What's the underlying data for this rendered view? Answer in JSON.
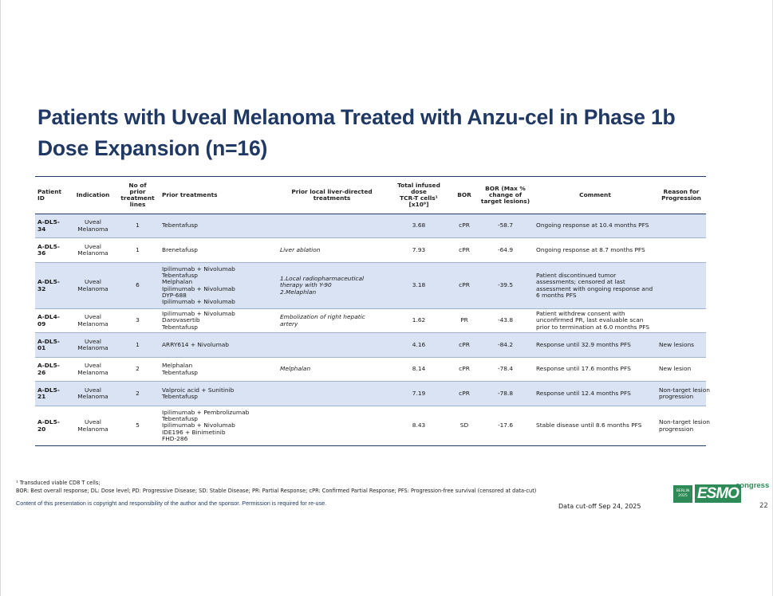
{
  "slide": {
    "title_lines": [
      "Patients with Uveal Melanoma Treated with Anzu-cel in Phase 1b",
      "Dose Expansion (n=16)"
    ],
    "page_number": "22",
    "data_cutoff": "Data cut-off Sep 24, 2025",
    "footnote_lines": [
      "¹ Transduced viable CD8 T cells;",
      "BOR: Best overall response; DL: Dose level; PD: Progressive Disease; SD: Stable Disease; PR: Partial Response; cPR: Confirmed Partial Response; PFS: Progression-free survival (censored at data-cut)"
    ],
    "copyright": "Content of this presentation is copyright and responsibility of the author and the sponsor. Permission is required for re-use.",
    "logo": {
      "city_lines": [
        "BERLIN",
        "2025"
      ],
      "word": "ESMO",
      "suffix": "congress",
      "color": "#2e8b57"
    }
  },
  "colors": {
    "title": "#1f3864",
    "row_shade": "#dae3f3",
    "rule": "#1f3864"
  },
  "table": {
    "headers": {
      "patient_id": [
        "Patient",
        "ID"
      ],
      "indication": [
        "Indication"
      ],
      "prior_lines": [
        "No of",
        "prior",
        "treatment",
        "lines"
      ],
      "prior_treatments": [
        "Prior treatments"
      ],
      "liver": [
        "Prior local liver-directed",
        "treatments"
      ],
      "dose": [
        "Total infused",
        "dose",
        "TCR-T cells¹",
        "[x10⁹]"
      ],
      "bor": [
        "BOR"
      ],
      "bor_pct": [
        "BOR (Max %",
        "change of",
        "target lesions)"
      ],
      "comment": [
        "Comment"
      ],
      "reason": [
        "Reason for",
        "Progression"
      ]
    },
    "rows": [
      {
        "shade": true,
        "h": 30,
        "id": "A-DL5-34",
        "indication": [
          "Uveal",
          "Melanoma"
        ],
        "lines": "1",
        "treatments": [
          "Tebentafusp"
        ],
        "liver": [],
        "dose": "3.68",
        "bor": "cPR",
        "pct": "-58.7",
        "comment": [
          "Ongoing  response at 10.4 months PFS"
        ],
        "reason": []
      },
      {
        "shade": false,
        "h": 31,
        "id": "A-DL5-36",
        "indication": [
          "Uveal",
          "Melanoma"
        ],
        "lines": "1",
        "treatments": [
          "Brenetafusp"
        ],
        "liver": [
          "Liver ablation"
        ],
        "dose": "7.93",
        "bor": "cPR",
        "pct": "-64.9",
        "comment": [
          "Ongoing response at 8.7 months PFS"
        ],
        "reason": []
      },
      {
        "shade": true,
        "h": 58,
        "id": "A-DL5-32",
        "indication": [
          "Uveal",
          "Melanoma"
        ],
        "lines": "6",
        "treatments": [
          "Ipilimumab + Nivolumab",
          "Tebentafusp",
          "Melphalan",
          "Ipilimumab + Nivolumab",
          "DYP-688",
          "Ipilimumab + Nivolumab"
        ],
        "liver": [
          "1.Local radiopharmaceutical",
          "therapy with Y-90",
          "2.Melaphlan"
        ],
        "dose": "3.18",
        "bor": "cPR",
        "pct": "-39.5",
        "comment": [
          "Patient discontinued tumor",
          "assessments; censored at last",
          "assessment with ongoing response and",
          "6 months PFS"
        ],
        "reason": []
      },
      {
        "shade": false,
        "h": 30,
        "id": "A-DL4-09",
        "indication": [
          "Uveal",
          "Melanoma"
        ],
        "lines": "3",
        "treatments": [
          "Ipilimumab + Nivolumab",
          "Darovasertib",
          "Tebentafusp"
        ],
        "liver": [
          "Embolization of right hepatic",
          "artery"
        ],
        "dose": "1.62",
        "bor": "PR",
        "pct": "-43.8",
        "comment": [
          "Patient withdrew consent with",
          "unconfirmed PR, last evaluable scan",
          "prior to termination at 6.0 months PFS"
        ],
        "reason": []
      },
      {
        "shade": true,
        "h": 31,
        "id": "A-DL5-01",
        "indication": [
          "Uveal",
          "Melanoma"
        ],
        "lines": "1",
        "treatments": [
          "ARRY614 + Nivolumab"
        ],
        "liver": [],
        "dose": "4.16",
        "bor": "cPR",
        "pct": "-84.2",
        "comment": [
          "Response until 32.9 months PFS"
        ],
        "reason": [
          "New lesions"
        ]
      },
      {
        "shade": false,
        "h": 30,
        "id": "A-DL5-26",
        "indication": [
          "Uveal",
          "Melanoma"
        ],
        "lines": "2",
        "treatments": [
          "Melphalan",
          "Tebentafusp"
        ],
        "liver": [
          "Melphalan"
        ],
        "dose": "8.14",
        "bor": "cPR",
        "pct": "-78.4",
        "comment": [
          "Response until 17.6 months PFS"
        ],
        "reason": [
          "New lesion"
        ]
      },
      {
        "shade": true,
        "h": 31,
        "id": "A-DL5-21",
        "indication": [
          "Uveal",
          "Melanoma"
        ],
        "lines": "2",
        "treatments": [
          "Valproic acid +  Sunitinib",
          "Tebentafusp"
        ],
        "liver": [],
        "dose": "7.19",
        "bor": "cPR",
        "pct": "-78.8",
        "comment": [
          "Response until 12.4 months PFS"
        ],
        "reason": [
          "Non-target lesion",
          "progression"
        ]
      },
      {
        "shade": false,
        "h": 50,
        "id": "A-DL5-20",
        "indication": [
          "Uveal",
          "Melanoma"
        ],
        "lines": "5",
        "treatments": [
          "Ipilimumab + Pembrolizumab",
          "Tebentafusp",
          "Ipilimumab + Nivolumab",
          "IDE196 + Binimetinib",
          "FHD-286"
        ],
        "liver": [],
        "dose": "8.43",
        "bor": "SD",
        "pct": "-17.6",
        "comment": [
          "Stable disease until 8.6 months PFS"
        ],
        "reason": [
          "Non-target lesion",
          "progression"
        ]
      }
    ]
  }
}
